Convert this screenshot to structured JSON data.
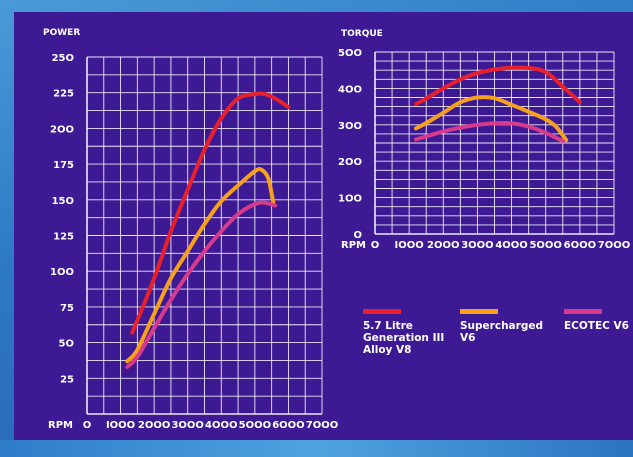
{
  "chart_data": [
    {
      "type": "line",
      "ylabel": "POWER",
      "xlabel": "RPM",
      "x_ticks": [
        0,
        1000,
        2000,
        3000,
        4000,
        5000,
        6000,
        7000
      ],
      "y_ticks": [
        25,
        50,
        75,
        100,
        125,
        150,
        175,
        200,
        225,
        250
      ],
      "xlim": [
        0,
        7000
      ],
      "ylim": [
        0,
        250
      ],
      "grid": true,
      "series": [
        {
          "name": "5.7 Litre Generation III Alloy V8",
          "color": "#e8202c",
          "x": [
            1350,
            2000,
            2500,
            3000,
            3500,
            4000,
            4500,
            5000,
            5300,
            5600,
            6000
          ],
          "y": [
            57,
            95,
            128,
            157,
            185,
            207,
            221,
            224,
            224,
            221,
            215
          ]
        },
        {
          "name": "Supercharged V6",
          "color": "#f5a01e",
          "x": [
            1200,
            1500,
            2000,
            2500,
            3000,
            3500,
            4000,
            4500,
            5000,
            5200,
            5400,
            5550
          ],
          "y": [
            37,
            45,
            70,
            95,
            114,
            133,
            149,
            160,
            170,
            171,
            165,
            148
          ]
        },
        {
          "name": "ECOTEC V6",
          "color": "#d63a8c",
          "x": [
            1200,
            1500,
            2000,
            2500,
            3000,
            3500,
            4000,
            4500,
            5000,
            5300,
            5600
          ],
          "y": [
            33,
            40,
            60,
            80,
            98,
            114,
            128,
            140,
            147,
            148,
            146
          ]
        }
      ]
    },
    {
      "type": "line",
      "ylabel": "TORQUE",
      "xlabel": "RPM",
      "x_ticks": [
        0,
        1000,
        2000,
        3000,
        4000,
        5000,
        6000,
        7000
      ],
      "y_ticks": [
        0,
        100,
        200,
        300,
        400,
        500
      ],
      "xlim": [
        0,
        7000
      ],
      "ylim": [
        0,
        500
      ],
      "grid": true,
      "series": [
        {
          "name": "5.7 Litre Generation III Alloy V8",
          "color": "#e8202c",
          "x": [
            1200,
            1500,
            2000,
            2500,
            3000,
            3500,
            4000,
            4500,
            5000,
            5500,
            6000
          ],
          "y": [
            357,
            372,
            400,
            425,
            442,
            452,
            457,
            456,
            445,
            405,
            362
          ]
        },
        {
          "name": "Supercharged V6",
          "color": "#f5a01e",
          "x": [
            1200,
            1500,
            2000,
            2500,
            3000,
            3500,
            4000,
            4500,
            5000,
            5300,
            5600
          ],
          "y": [
            290,
            305,
            333,
            362,
            375,
            373,
            355,
            336,
            315,
            295,
            258
          ]
        },
        {
          "name": "ECOTEC V6",
          "color": "#d63a8c",
          "x": [
            1200,
            1500,
            2000,
            2500,
            3000,
            3500,
            4000,
            4500,
            5000,
            5500
          ],
          "y": [
            260,
            268,
            282,
            292,
            300,
            304,
            304,
            295,
            278,
            255
          ]
        }
      ]
    }
  ],
  "legend": {
    "entries": [
      {
        "lines": [
          "5.7 Litre",
          "Generation III",
          "Alloy V8"
        ],
        "color": "#e8202c"
      },
      {
        "lines": [
          "Supercharged",
          "V6"
        ],
        "color": "#f5a01e"
      },
      {
        "lines": [
          "ECOTEC V6"
        ],
        "color": "#d63a8c"
      }
    ]
  }
}
